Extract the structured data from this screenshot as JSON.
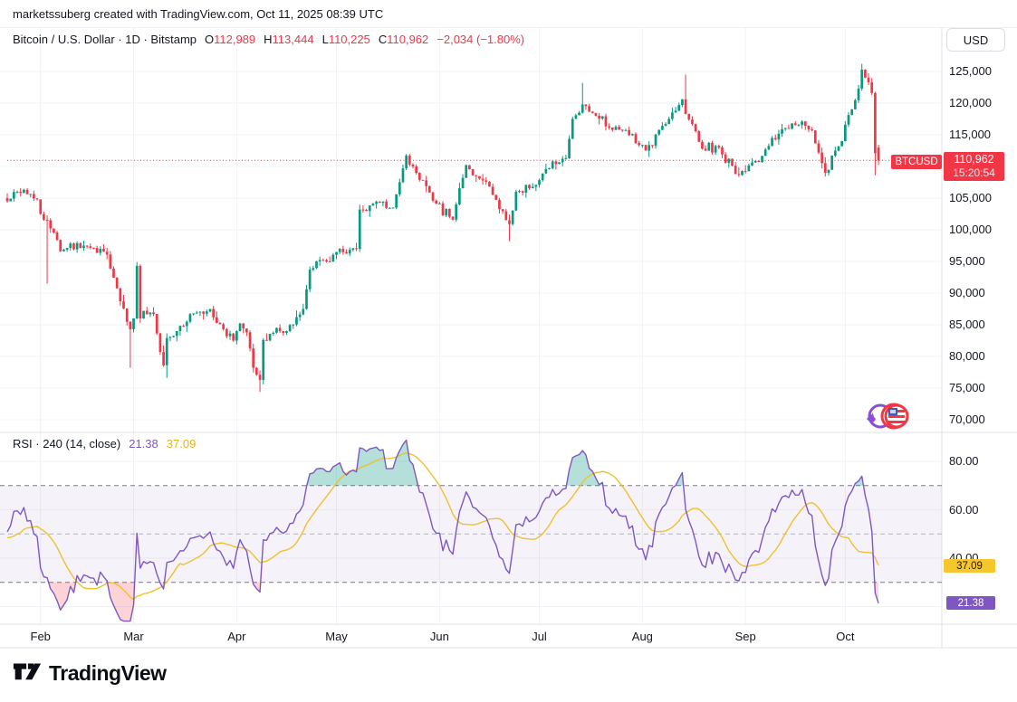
{
  "header": {
    "attribution": "marketssuberg created with TradingView.com, Oct 11, 2025 08:39 UTC"
  },
  "legend": {
    "symbol": "Bitcoin / U.S. Dollar · 1D · Bitstamp",
    "o_label": "O",
    "o": "112,989",
    "h_label": "H",
    "h": "113,444",
    "l_label": "L",
    "l": "110,225",
    "c_label": "C",
    "c": "110,962",
    "change": "−2,034 (−1.80%)"
  },
  "rsi_legend": {
    "title": "RSI · 240 (14, close)",
    "rsi_value": "21.38",
    "ma_value": "37.09"
  },
  "axis": {
    "currency": "USD",
    "price_label": {
      "symbol": "BTCUSD",
      "price": "110,962",
      "countdown": "15:20:54"
    },
    "rsi_labels": {
      "ma": "37.09",
      "rsi": "21.38"
    }
  },
  "footer": {
    "brand": "TradingView"
  },
  "colors": {
    "up": "#089981",
    "down": "#F23645",
    "grid": "#F0F3FA",
    "border": "#E0E3EB",
    "rsi_line": "#7E57C2",
    "rsi_ma_line": "#EFC12E",
    "band_fill": "#7E57C2",
    "overbought_fill": "rgba(8,153,129,0.3)",
    "oversold_fill": "rgba(242,54,69,0.22)",
    "level_dark": "#787B86",
    "level_mid": "#B2B5BE",
    "text": "#131722"
  },
  "chart_data": [
    {
      "type": "candlestick",
      "symbol": "Bitcoin / U.S. Dollar",
      "interval": "1D",
      "exchange": "Bitstamp",
      "ohlc_last": {
        "open": 112989,
        "high": 113444,
        "low": 110225,
        "close": 110962,
        "change": -2034,
        "change_pct": -1.8
      },
      "current_price": 110962,
      "ylim": [
        68000,
        129000
      ],
      "price_ticks": [
        {
          "v": 125000,
          "label": "125,000"
        },
        {
          "v": 120000,
          "label": "120,000"
        },
        {
          "v": 115000,
          "label": "115,000"
        },
        {
          "v": 105000,
          "label": "105,000"
        },
        {
          "v": 100000,
          "label": "100,000"
        },
        {
          "v": 95000,
          "label": "95,000"
        },
        {
          "v": 90000,
          "label": "90,000"
        },
        {
          "v": 85000,
          "label": "85,000"
        },
        {
          "v": 80000,
          "label": "80,000"
        },
        {
          "v": 75000,
          "label": "75,000"
        },
        {
          "v": 70000,
          "label": "70,000"
        }
      ],
      "grid_prices": [
        125000,
        120000,
        115000,
        110000,
        105000,
        100000,
        95000,
        90000,
        85000,
        80000,
        75000,
        70000
      ],
      "months": [
        {
          "label": "Feb",
          "day": 10
        },
        {
          "label": "Mar",
          "day": 38
        },
        {
          "label": "Apr",
          "day": 69
        },
        {
          "label": "May",
          "day": 99
        },
        {
          "label": "Jun",
          "day": 130
        },
        {
          "label": "Jul",
          "day": 160
        },
        {
          "label": "Aug",
          "day": 191
        },
        {
          "label": "Sep",
          "day": 222
        },
        {
          "label": "Oct",
          "day": 252
        }
      ],
      "num_days": 263,
      "close_anchors": [
        [
          0,
          104500
        ],
        [
          3,
          106000
        ],
        [
          9,
          104800
        ],
        [
          10,
          102500
        ],
        [
          12,
          101500
        ],
        [
          16,
          96600
        ],
        [
          23,
          97500
        ],
        [
          30,
          96100
        ],
        [
          34,
          88700
        ],
        [
          37,
          84300
        ],
        [
          38,
          86000
        ],
        [
          39,
          94300
        ],
        [
          40,
          86000
        ],
        [
          41,
          87200
        ],
        [
          44,
          86700
        ],
        [
          46,
          80700
        ],
        [
          47,
          78600
        ],
        [
          48,
          82900
        ],
        [
          51,
          84000
        ],
        [
          56,
          86800
        ],
        [
          61,
          87500
        ],
        [
          65,
          84300
        ],
        [
          68,
          82500
        ],
        [
          70,
          85200
        ],
        [
          72,
          83800
        ],
        [
          74,
          78200
        ],
        [
          76,
          76300
        ],
        [
          77,
          82600
        ],
        [
          81,
          84500
        ],
        [
          84,
          84000
        ],
        [
          89,
          87500
        ],
        [
          91,
          93700
        ],
        [
          96,
          95000
        ],
        [
          99,
          96500
        ],
        [
          105,
          97000
        ],
        [
          106,
          103200
        ],
        [
          110,
          104100
        ],
        [
          116,
          103500
        ],
        [
          119,
          109700
        ],
        [
          120,
          111700
        ],
        [
          123,
          109000
        ],
        [
          128,
          104600
        ],
        [
          134,
          101600
        ],
        [
          138,
          110200
        ],
        [
          140,
          108600
        ],
        [
          145,
          106800
        ],
        [
          151,
          100900
        ],
        [
          153,
          106000
        ],
        [
          159,
          107100
        ],
        [
          162,
          109600
        ],
        [
          168,
          111300
        ],
        [
          170,
          117500
        ],
        [
          173,
          119800
        ],
        [
          177,
          118000
        ],
        [
          184,
          115800
        ],
        [
          191,
          113400
        ],
        [
          192,
          112500
        ],
        [
          198,
          116700
        ],
        [
          201,
          118800
        ],
        [
          203,
          120600
        ],
        [
          204,
          118300
        ],
        [
          209,
          112800
        ],
        [
          214,
          113000
        ],
        [
          219,
          108800
        ],
        [
          222,
          109250
        ],
        [
          226,
          110700
        ],
        [
          233,
          115900
        ],
        [
          239,
          117100
        ],
        [
          242,
          115700
        ],
        [
          246,
          109000
        ],
        [
          251,
          114000
        ],
        [
          252,
          116600
        ],
        [
          256,
          122300
        ],
        [
          257,
          125300
        ],
        [
          259,
          123300
        ],
        [
          260,
          121600
        ],
        [
          261,
          112100
        ],
        [
          262,
          110962
        ]
      ],
      "extreme_wicks": {
        "12": {
          "low": 91500
        },
        "37": {
          "low": 78200
        },
        "48": {
          "low": 76600
        },
        "76": {
          "low": 74400
        },
        "120": {
          "high": 111980
        },
        "151": {
          "low": 98200
        },
        "173": {
          "high": 123200
        },
        "204": {
          "high": 124500
        },
        "257": {
          "high": 126200
        },
        "261": {
          "low": 108600
        }
      }
    },
    {
      "type": "line",
      "title": "RSI",
      "settings": "240 (14, close)",
      "period": 14,
      "levels": {
        "upper": 70,
        "middle": 50,
        "lower": 30
      },
      "ticks": [
        {
          "v": 80,
          "label": "80.00"
        },
        {
          "v": 60,
          "label": "60.00"
        },
        {
          "v": 40,
          "label": "40.00"
        }
      ],
      "grid_levels": [
        80,
        60,
        40,
        20
      ],
      "ylim": [
        14,
        92
      ],
      "series": [
        {
          "name": "RSI",
          "color": "#7E57C2",
          "last": 21.38
        },
        {
          "name": "RSI-based MA",
          "color": "#EFC12E",
          "last": 37.09
        }
      ]
    }
  ]
}
